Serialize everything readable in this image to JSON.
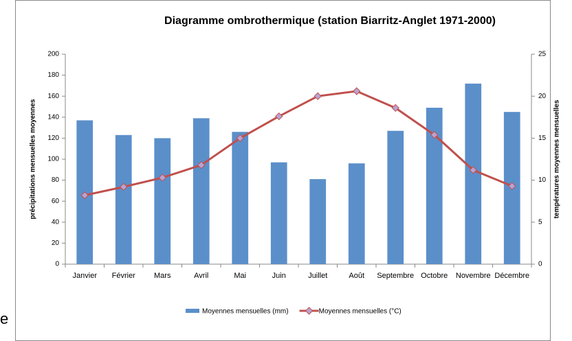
{
  "chart_data": {
    "type": "combo",
    "title": "Diagramme ombrothermique (station Biarritz-Anglet 1971-2000)",
    "ylabel": "précipitations mensuelles moyennes",
    "y2label": "températures moyennes mensuelles",
    "categories": [
      "Janvier",
      "Février",
      "Mars",
      "Avril",
      "Mai",
      "Juin",
      "Juillet",
      "Août",
      "Septembre",
      "Octobre",
      "Novembre",
      "Décembre"
    ],
    "series": [
      {
        "name": "Moyennes mensuelles (mm)",
        "type": "bar",
        "color": "#5b8fca",
        "values": [
          137,
          123,
          120,
          139,
          126,
          97,
          81,
          96,
          127,
          149,
          172,
          145
        ]
      },
      {
        "name": "Moyennes mensuelles (°C)",
        "type": "line",
        "axis": "y2",
        "color": "#c0504d",
        "marker_color": "#b7a3d3",
        "values": [
          8.2,
          9.2,
          10.3,
          11.8,
          15.0,
          17.6,
          20.0,
          20.6,
          18.6,
          15.4,
          11.2,
          9.3
        ]
      }
    ],
    "ylim": [
      0,
      200
    ],
    "yticks": [
      0,
      20,
      40,
      60,
      80,
      100,
      120,
      140,
      160,
      180,
      200
    ],
    "y2lim": [
      0,
      25
    ],
    "y2ticks": [
      0,
      5,
      10,
      15,
      20,
      25
    ],
    "grid": false,
    "legend": "bottom"
  },
  "side_text": "e"
}
